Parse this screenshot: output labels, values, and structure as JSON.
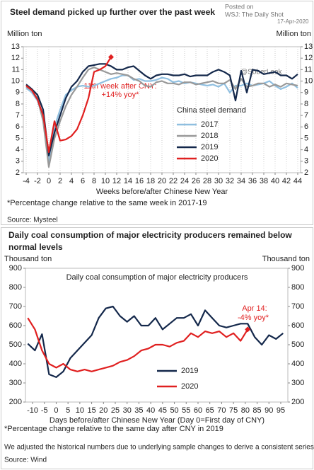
{
  "header": {
    "posted": "Posted on",
    "by": "WSJ: The Daily Shot",
    "date": "17-Apr-2020",
    "handle": "@SoberLook"
  },
  "chart_data": [
    {
      "type": "line",
      "title": "Steel demand picked up further over the past week",
      "y_label": "Million ton",
      "y2_label": "Million ton",
      "x_label": "Weeks before/after Chinese New Year",
      "legend_title": "China steel demand",
      "annotation": [
        "11th week after CNY:",
        "+14% yoy*"
      ],
      "footnote": "*Percentage change relative to the same week in 2017-19",
      "source": "Source: Mysteel",
      "grid": "x",
      "xlim": [
        -4.5,
        44.5
      ],
      "ylim": [
        2,
        13
      ],
      "xticks": [
        -4,
        -2,
        0,
        2,
        4,
        6,
        8,
        10,
        12,
        14,
        16,
        18,
        20,
        22,
        24,
        26,
        28,
        30,
        32,
        34,
        36,
        38,
        40,
        42,
        44
      ],
      "yticks": [
        2,
        3,
        4,
        5,
        6,
        7,
        8,
        9,
        10,
        11,
        12,
        13
      ],
      "x": [
        -4,
        -3,
        -2,
        -1,
        0,
        1,
        2,
        3,
        4,
        5,
        6,
        7,
        8,
        9,
        10,
        11,
        12,
        13,
        14,
        15,
        16,
        17,
        18,
        19,
        20,
        21,
        22,
        23,
        24,
        25,
        26,
        27,
        28,
        29,
        30,
        31,
        32,
        33,
        34,
        35,
        36,
        37,
        38,
        39,
        40,
        41,
        42,
        43,
        44
      ],
      "series": [
        {
          "name": "2017",
          "color": "#8fbfe0",
          "values": [
            9.4,
            9.0,
            8.3,
            6.8,
            3.0,
            6.0,
            7.5,
            8.8,
            9.2,
            9.5,
            9.6,
            9.5,
            9.6,
            9.8,
            10.0,
            10.2,
            10.3,
            10.5,
            10.5,
            10.1,
            10.2,
            10.0,
            10.0,
            10.1,
            10.3,
            10.2,
            9.9,
            10.0,
            9.8,
            9.9,
            9.8,
            9.7,
            9.6,
            9.7,
            9.5,
            9.8,
            9.0,
            9.6,
            9.6,
            9.8,
            9.6,
            9.7,
            9.8,
            10.0,
            9.6,
            9.3,
            9.5,
            9.8,
            9.4
          ]
        },
        {
          "name": "2018",
          "color": "#999999",
          "values": [
            9.5,
            9.2,
            8.5,
            6.5,
            2.5,
            5.0,
            6.5,
            7.8,
            8.8,
            9.5,
            10.3,
            11.0,
            11.2,
            11.0,
            10.8,
            10.6,
            10.7,
            10.6,
            10.5,
            10.2,
            10.0,
            9.6,
            9.5,
            9.9,
            10.0,
            9.8,
            9.8,
            9.7,
            9.9,
            9.9,
            9.7,
            9.8,
            9.9,
            10.0,
            9.8,
            9.8,
            10.1,
            9.3,
            10.2,
            9.5,
            9.6,
            9.8,
            9.8,
            9.5,
            9.7,
            9.5,
            9.8,
            9.7,
            9.6
          ]
        },
        {
          "name": "2019",
          "color": "#14284b",
          "values": [
            9.7,
            9.3,
            8.8,
            7.5,
            3.5,
            5.5,
            7.0,
            8.5,
            9.5,
            10.0,
            10.8,
            11.3,
            11.4,
            11.5,
            11.5,
            11.3,
            11.0,
            11.0,
            11.2,
            11.3,
            10.9,
            10.5,
            10.2,
            10.5,
            10.6,
            10.6,
            10.5,
            10.5,
            10.6,
            10.4,
            10.5,
            10.5,
            10.5,
            10.8,
            11.0,
            10.8,
            10.5,
            8.3,
            10.9,
            9.0,
            11.0,
            10.9,
            10.6,
            10.7,
            10.8,
            10.5,
            10.5,
            10.2,
            10.6
          ]
        },
        {
          "name": "2020",
          "color": "#e02020",
          "end_marker": "diamond",
          "values": [
            9.6,
            9.2,
            8.4,
            7.0,
            3.8,
            6.5,
            4.8,
            4.9,
            5.2,
            5.8,
            7.0,
            8.5,
            10.8,
            11.0,
            11.3,
            12.1,
            null,
            null,
            null,
            null,
            null,
            null,
            null,
            null,
            null,
            null,
            null,
            null,
            null,
            null,
            null,
            null,
            null,
            null,
            null,
            null,
            null,
            null,
            null,
            null,
            null,
            null,
            null,
            null,
            null,
            null,
            null,
            null,
            null
          ]
        }
      ]
    },
    {
      "type": "line",
      "title": "Daily coal consumption of major electricity producers remained below normal levels",
      "subtitle": "Daily coal consumption of major electricity producers",
      "y_label": "Thousand ton",
      "y2_label": "Thousand ton",
      "x_label": "Days before/after Chinese New Year (Day 0=First day of CNY)",
      "annotation": [
        "Apr 14:",
        "-4% yoy*"
      ],
      "footnote": "*Percentage change relative to the same day after CNY in 2019",
      "note": "We adjusted the historical numbers due to underlying sample changes to derive a consistent series",
      "source": "Source: Wind",
      "xlim": [
        -13,
        98
      ],
      "ylim": [
        200,
        900
      ],
      "xticks": [
        -10,
        -5,
        0,
        5,
        10,
        15,
        20,
        25,
        30,
        35,
        40,
        45,
        50,
        55,
        60,
        65,
        70,
        75,
        80,
        85,
        90,
        95
      ],
      "yticks": [
        200,
        300,
        400,
        500,
        600,
        700,
        800,
        900
      ],
      "x": [
        -12,
        -9,
        -6,
        -3,
        0,
        3,
        6,
        9,
        12,
        15,
        18,
        21,
        24,
        27,
        30,
        33,
        36,
        39,
        42,
        45,
        48,
        51,
        54,
        57,
        60,
        63,
        66,
        69,
        72,
        75,
        78,
        81,
        84,
        87,
        90,
        93,
        96
      ],
      "series": [
        {
          "name": "2019",
          "color": "#14284b",
          "values": [
            505,
            470,
            555,
            345,
            330,
            360,
            430,
            470,
            510,
            550,
            640,
            690,
            700,
            650,
            620,
            650,
            600,
            600,
            640,
            580,
            610,
            640,
            640,
            660,
            600,
            680,
            640,
            600,
            590,
            600,
            610,
            610,
            540,
            500,
            550,
            530,
            560
          ]
        },
        {
          "name": "2020",
          "color": "#e02020",
          "end_marker": "diamond",
          "values": [
            640,
            580,
            470,
            400,
            380,
            400,
            370,
            360,
            370,
            360,
            370,
            380,
            390,
            410,
            420,
            440,
            470,
            480,
            500,
            500,
            490,
            510,
            520,
            560,
            540,
            570,
            560,
            570,
            540,
            560,
            520,
            580,
            null,
            null,
            null,
            null,
            null
          ]
        }
      ]
    }
  ]
}
